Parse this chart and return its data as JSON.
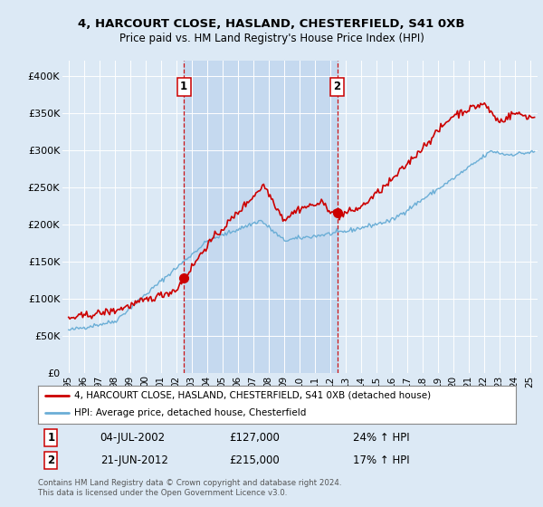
{
  "title": "4, HARCOURT CLOSE, HASLAND, CHESTERFIELD, S41 0XB",
  "subtitle": "Price paid vs. HM Land Registry's House Price Index (HPI)",
  "background_color": "#dce9f5",
  "plot_bg_color": "#dce9f5",
  "shaded_region_color": "#c5d9ef",
  "ylabel_values": [
    "£0",
    "£50K",
    "£100K",
    "£150K",
    "£200K",
    "£250K",
    "£300K",
    "£350K",
    "£400K"
  ],
  "ylim": [
    0,
    420000
  ],
  "xlim_start": 1994.6,
  "xlim_end": 2025.5,
  "sale1_x": 2002.5,
  "sale1_y": 127000,
  "sale1_label": "1",
  "sale2_x": 2012.47,
  "sale2_y": 215000,
  "sale2_label": "2",
  "legend_line1": "4, HARCOURT CLOSE, HASLAND, CHESTERFIELD, S41 0XB (detached house)",
  "legend_line2": "HPI: Average price, detached house, Chesterfield",
  "table_row1": [
    "1",
    "04-JUL-2002",
    "£127,000",
    "24% ↑ HPI"
  ],
  "table_row2": [
    "2",
    "21-JUN-2012",
    "£215,000",
    "17% ↑ HPI"
  ],
  "footnote": "Contains HM Land Registry data © Crown copyright and database right 2024.\nThis data is licensed under the Open Government Licence v3.0.",
  "hpi_color": "#6baed6",
  "price_color": "#cc0000",
  "sale_marker_color": "#cc0000",
  "dashed_line_color": "#cc0000",
  "grid_color": "#ffffff"
}
